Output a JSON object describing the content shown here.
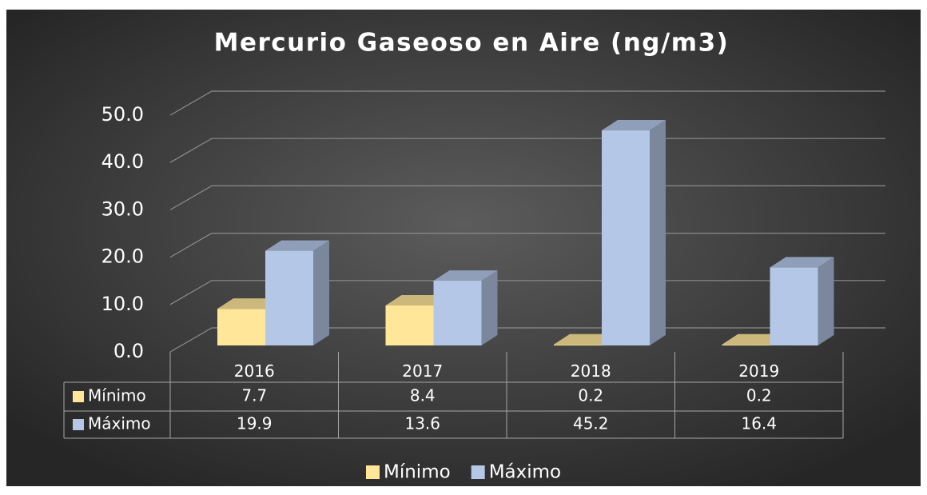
{
  "chart_data": {
    "type": "bar3d",
    "title": "Mercurio Gaseoso en Aire (ng/m3)",
    "categories": [
      "2016",
      "2017",
      "2018",
      "2019"
    ],
    "series": [
      {
        "name": "Mínimo",
        "color": "#ffe699",
        "values": [
          7.7,
          8.4,
          0.2,
          0.2
        ]
      },
      {
        "name": "Máximo",
        "color": "#b4c7e7",
        "values": [
          19.9,
          13.6,
          45.2,
          16.4
        ]
      }
    ],
    "ylim": [
      0,
      50
    ],
    "yticks": [
      {
        "value": 0,
        "label": "0.0"
      },
      {
        "value": 10,
        "label": "10.0"
      },
      {
        "value": 20,
        "label": "20.0"
      },
      {
        "value": 30,
        "label": "30.0"
      },
      {
        "value": 40,
        "label": "40.0"
      },
      {
        "value": 50,
        "label": "50.0"
      }
    ],
    "grid": true,
    "legend": "bottom",
    "data_table": true
  }
}
